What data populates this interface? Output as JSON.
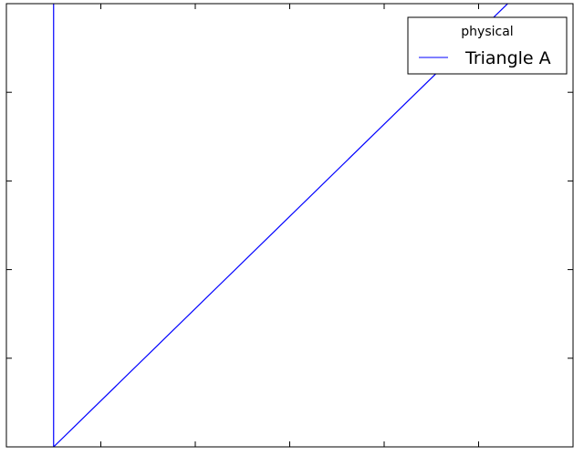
{
  "chart_data": {
    "type": "line",
    "title": "",
    "xlabel": "",
    "ylabel": "",
    "xlim": [
      0,
      6
    ],
    "ylim": [
      0,
      5
    ],
    "grid": false,
    "x_tick_labels_shown": false,
    "y_tick_labels_shown": false,
    "legend": {
      "title": "physical",
      "placement": "top-right"
    },
    "series": [
      {
        "name": "Triangle A",
        "color": "#0000ff",
        "x": [
          0.5,
          0.5,
          5.5
        ],
        "y": [
          5.0,
          0.0,
          5.2
        ]
      }
    ]
  }
}
